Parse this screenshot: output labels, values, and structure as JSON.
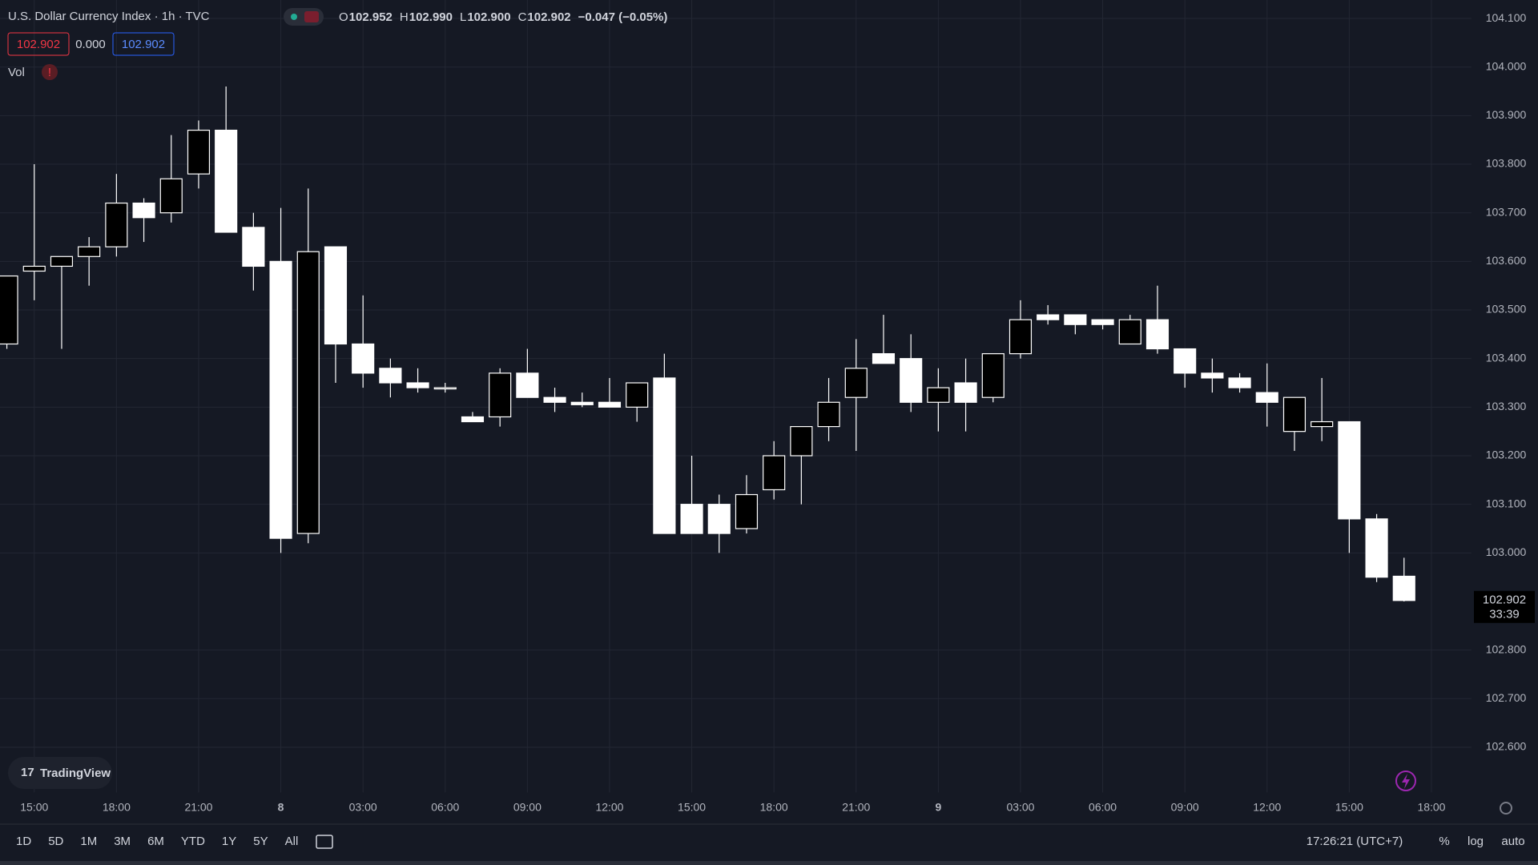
{
  "chart_data": {
    "type": "candlestick",
    "title": "U.S. Dollar Currency Index · 1h · TVC",
    "categories": [
      null,
      "15:00",
      null,
      null,
      "18:00",
      null,
      null,
      "21:00",
      null,
      null,
      "8",
      null,
      null,
      "03:00",
      null,
      null,
      "06:00",
      null,
      null,
      "09:00",
      null,
      null,
      "12:00",
      null,
      null,
      "15:00",
      null,
      null,
      "18:00",
      null,
      null,
      "21:00",
      null,
      null,
      "9",
      null,
      null,
      "03:00",
      null,
      null,
      "06:00",
      null,
      null,
      "09:00",
      null,
      null,
      "12:00",
      null,
      null,
      "15:00",
      null,
      null,
      "18:00"
    ],
    "open": [
      103.43,
      103.58,
      103.59,
      103.61,
      103.63,
      103.72,
      103.7,
      103.78,
      103.87,
      103.67,
      103.6,
      103.04,
      103.63,
      103.43,
      103.38,
      103.35,
      103.34,
      103.28,
      103.28,
      103.37,
      103.32,
      103.31,
      103.31,
      103.3,
      103.36,
      103.1,
      103.1,
      103.05,
      103.13,
      103.2,
      103.26,
      103.32,
      103.41,
      103.4,
      103.31,
      103.35,
      103.32,
      103.41,
      103.49,
      103.49,
      103.48,
      103.43,
      103.48,
      103.42,
      103.37,
      103.36,
      103.33,
      103.25,
      103.26,
      103.27,
      103.07,
      102.952,
      null
    ],
    "high": [
      103.57,
      103.8,
      103.61,
      103.65,
      103.78,
      103.73,
      103.86,
      103.89,
      103.96,
      103.7,
      103.71,
      103.75,
      103.63,
      103.53,
      103.4,
      103.38,
      103.35,
      103.29,
      103.38,
      103.42,
      103.34,
      103.33,
      103.36,
      103.35,
      103.41,
      103.2,
      103.12,
      103.16,
      103.23,
      103.26,
      103.36,
      103.44,
      103.49,
      103.45,
      103.38,
      103.4,
      103.41,
      103.52,
      103.51,
      103.49,
      103.48,
      103.49,
      103.55,
      103.42,
      103.4,
      103.37,
      103.39,
      103.32,
      103.36,
      103.27,
      103.08,
      102.99,
      null
    ],
    "low": [
      103.42,
      103.52,
      103.42,
      103.55,
      103.61,
      103.64,
      103.68,
      103.75,
      103.66,
      103.54,
      103.0,
      103.02,
      103.35,
      103.34,
      103.32,
      103.33,
      103.33,
      103.27,
      103.26,
      103.32,
      103.29,
      103.3,
      103.3,
      103.27,
      103.04,
      103.04,
      103.0,
      103.04,
      103.11,
      103.1,
      103.23,
      103.21,
      103.39,
      103.29,
      103.25,
      103.25,
      103.31,
      103.4,
      103.47,
      103.45,
      103.46,
      103.43,
      103.41,
      103.34,
      103.33,
      103.33,
      103.26,
      103.21,
      103.23,
      103.0,
      102.94,
      102.9,
      null
    ],
    "close": [
      103.57,
      103.59,
      103.61,
      103.63,
      103.72,
      103.69,
      103.77,
      103.87,
      103.66,
      103.59,
      103.03,
      103.62,
      103.43,
      103.37,
      103.35,
      103.34,
      103.34,
      103.27,
      103.37,
      103.32,
      103.31,
      103.305,
      103.3,
      103.35,
      103.04,
      103.04,
      103.04,
      103.12,
      103.2,
      103.26,
      103.31,
      103.38,
      103.39,
      103.31,
      103.34,
      103.31,
      103.41,
      103.48,
      103.48,
      103.47,
      103.47,
      103.48,
      103.42,
      103.37,
      103.36,
      103.34,
      103.31,
      103.32,
      103.27,
      103.07,
      102.95,
      102.902,
      null
    ],
    "up_color": "#000000",
    "down_color": "#ffffff",
    "ylim": [
      102.507,
      104.138
    ],
    "yticks": [
      {
        "value": 104.1,
        "label": "104.100"
      },
      {
        "value": 104.0,
        "label": "104.000"
      },
      {
        "value": 103.9,
        "label": "103.900"
      },
      {
        "value": 103.8,
        "label": "103.800"
      },
      {
        "value": 103.7,
        "label": "103.700"
      },
      {
        "value": 103.6,
        "label": "103.600"
      },
      {
        "value": 103.5,
        "label": "103.500"
      },
      {
        "value": 103.4,
        "label": "103.400"
      },
      {
        "value": 103.3,
        "label": "103.300"
      },
      {
        "value": 103.2,
        "label": "103.200"
      },
      {
        "value": 103.1,
        "label": "103.100"
      },
      {
        "value": 103.0,
        "label": "103.000"
      },
      {
        "value": 102.8,
        "label": "102.800"
      },
      {
        "value": 102.7,
        "label": "102.700"
      },
      {
        "value": 102.6,
        "label": "102.600"
      }
    ],
    "grid": true
  },
  "ui": {
    "ohlc": [
      {
        "key": "O",
        "value": "102.952"
      },
      {
        "key": "H",
        "value": "102.990"
      },
      {
        "key": "L",
        "value": "102.900"
      },
      {
        "key": "C",
        "value": "102.902"
      }
    ],
    "change": "−0.047 (−0.05%)",
    "spread": "0.000",
    "volume_label": "Vol",
    "volume_alert": "!",
    "logo": "TradingView",
    "countdown": "33:39",
    "ranges": [
      "1D",
      "5D",
      "1M",
      "3M",
      "6M",
      "YTD",
      "1Y",
      "5Y",
      "All"
    ],
    "clock": "17:26:21 (UTC+7)",
    "percent": "%",
    "log": "log",
    "auto": "auto"
  }
}
